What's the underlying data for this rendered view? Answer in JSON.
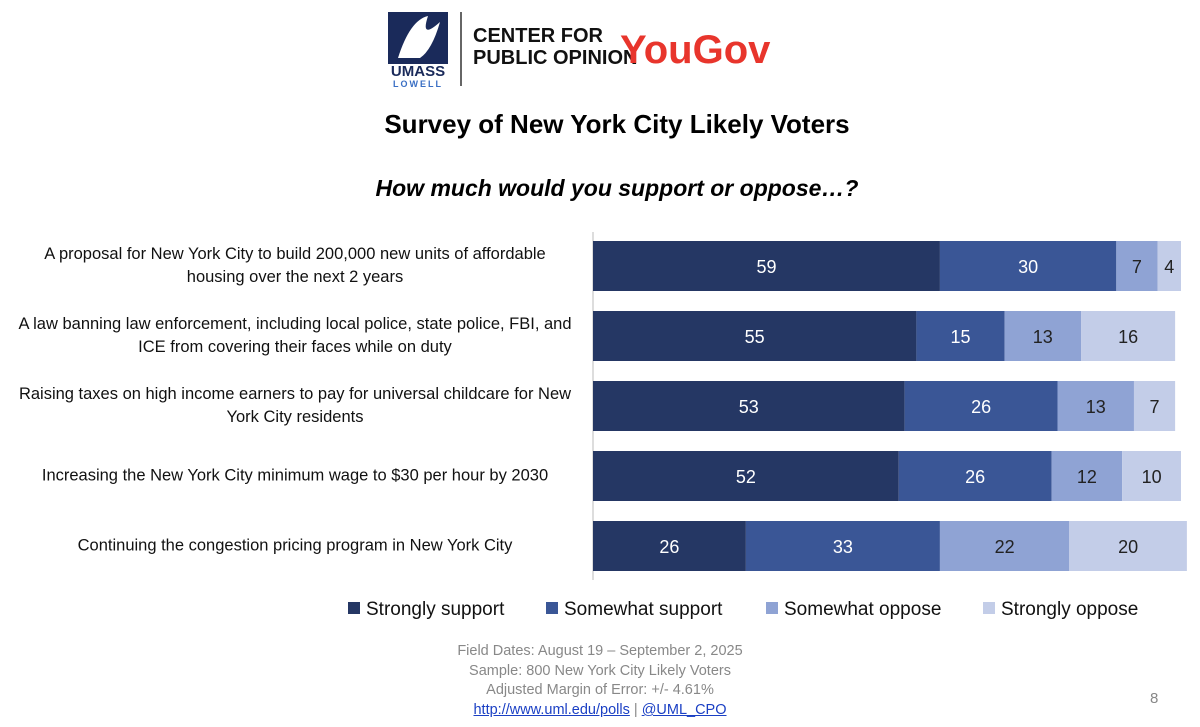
{
  "header": {
    "logo_umass": "UMASS",
    "logo_lowell": "LOWELL",
    "center_line1": "CENTER FOR",
    "center_line2": "PUBLIC OPINION",
    "yougov": "YouGov"
  },
  "chart_data": {
    "type": "stacked-bar-horizontal",
    "title": "Survey of New York City Likely Voters",
    "subtitle": "How much would you support or oppose…?",
    "categories": [
      "A proposal for New York City to build 200,000 new units of affordable housing over the next 2 years",
      "A law banning law enforcement, including local police, state police, FBI, and ICE from covering their faces while on duty",
      "Raising taxes on high income earners to pay for universal childcare for New York City residents",
      "Increasing the New York City minimum wage to $30 per hour by 2030",
      "Continuing the congestion pricing program in New York City"
    ],
    "xlim": [
      0,
      100
    ],
    "series": [
      {
        "name": "Strongly support",
        "color": "#253764",
        "values": [
          59,
          55,
          53,
          52,
          26
        ]
      },
      {
        "name": "Somewhat support",
        "color": "#3a5696",
        "values": [
          30,
          15,
          26,
          26,
          33
        ]
      },
      {
        "name": "Somewhat oppose",
        "color": "#8fa3d4",
        "values": [
          7,
          13,
          13,
          12,
          22
        ]
      },
      {
        "name": "Strongly oppose",
        "color": "#c3cde8",
        "values": [
          4,
          16,
          7,
          10,
          20
        ]
      }
    ]
  },
  "footer": {
    "dates": "Field Dates: August 19 – September 2, 2025",
    "sample": "Sample: 800 New York City Likely Voters",
    "moe": "Adjusted Margin of Error: +/- 4.61%",
    "link": "http://www.uml.edu/polls",
    "separator": "|",
    "handle": "@UML_CPO",
    "page": "8"
  }
}
